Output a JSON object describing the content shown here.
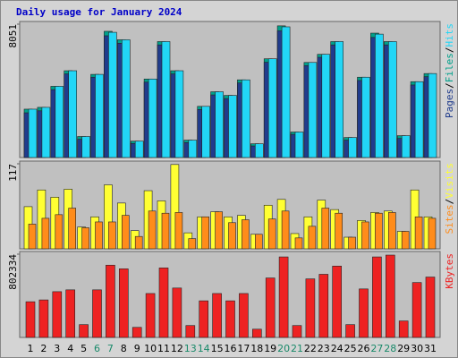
{
  "chart_data": [
    {
      "type": "bar",
      "title": "Daily usage for January 2024",
      "ylim": [
        0,
        8051
      ],
      "yticks": [
        8051
      ],
      "legend_separator": "/",
      "series": [
        {
          "name": "Pages",
          "color": "#203c8c",
          "values": [
            2700,
            2820,
            4100,
            5050,
            1100,
            4850,
            7350,
            6900,
            850,
            4550,
            6800,
            5050,
            900,
            2900,
            3780,
            3560,
            4500,
            700,
            5750,
            7650,
            1400,
            5550,
            6050,
            6800,
            1050,
            4650,
            7250,
            6800,
            1150,
            4380,
            4880
          ]
        },
        {
          "name": "Files",
          "color": "#00a08a",
          "values": [
            2920,
            3030,
            4300,
            5240,
            1270,
            5020,
            7620,
            7110,
            990,
            4740,
            7000,
            5240,
            1050,
            3090,
            3970,
            3750,
            4690,
            830,
            5960,
            7950,
            1540,
            5740,
            6230,
            7000,
            1210,
            4850,
            7510,
            7000,
            1320,
            4580,
            5070
          ]
        },
        {
          "name": "Hits",
          "color": "#22d6f6",
          "values": [
            2920,
            3030,
            4300,
            5240,
            1270,
            5020,
            7560,
            7110,
            990,
            4740,
            7000,
            5240,
            1050,
            3090,
            3970,
            3750,
            4690,
            830,
            5960,
            7890,
            1540,
            5740,
            6230,
            7000,
            1210,
            4850,
            7450,
            7000,
            1320,
            4580,
            5070
          ]
        }
      ]
    },
    {
      "type": "bar",
      "ylim": [
        0,
        117
      ],
      "yticks": [
        117
      ],
      "legend_separator": "/",
      "series": [
        {
          "name": "Sites",
          "color": "#ff8c1a",
          "values": [
            34,
            42,
            47,
            56,
            29,
            37,
            37,
            46,
            17,
            52,
            49,
            50,
            14,
            44,
            51,
            36,
            40,
            20,
            41,
            52,
            15,
            31,
            56,
            49,
            16,
            37,
            49,
            50,
            24,
            44,
            42
          ]
        },
        {
          "name": "Visits",
          "color": "#ffff33",
          "values": [
            58,
            81,
            71,
            82,
            30,
            44,
            88,
            63,
            25,
            80,
            66,
            116,
            22,
            44,
            51,
            44,
            46,
            20,
            60,
            68,
            21,
            44,
            67,
            54,
            16,
            39,
            50,
            52,
            24,
            81,
            44
          ]
        }
      ]
    },
    {
      "type": "bar",
      "ylim": [
        0,
        802334
      ],
      "yticks": [
        802334
      ],
      "series": [
        {
          "name": "KBytes",
          "color": "#ee2222",
          "values": [
            343900,
            361500,
            440900,
            458500,
            123400,
            458500,
            696500,
            661300,
            97000,
            423200,
            670100,
            476100,
            114600,
            352700,
            423200,
            352700,
            423200,
            79400,
            573100,
            775900,
            114600,
            564300,
            608400,
            687700,
            123400,
            467300,
            775900,
            793500,
            158700,
            529000,
            581900
          ]
        }
      ],
      "categories": [
        "1",
        "2",
        "3",
        "4",
        "5",
        "6",
        "7",
        "8",
        "9",
        "10",
        "11",
        "12",
        "13",
        "14",
        "15",
        "16",
        "17",
        "18",
        "19",
        "20",
        "21",
        "22",
        "23",
        "24",
        "25",
        "26",
        "27",
        "28",
        "29",
        "30",
        "31"
      ],
      "category_colors": [
        "#000",
        "#000",
        "#000",
        "#000",
        "#000",
        "#1a8a6a",
        "#1a8a6a",
        "#000",
        "#000",
        "#000",
        "#000",
        "#000",
        "#1a8a6a",
        "#1a8a6a",
        "#000",
        "#000",
        "#000",
        "#000",
        "#000",
        "#1a8a6a",
        "#1a8a6a",
        "#000",
        "#000",
        "#000",
        "#000",
        "#000",
        "#1a8a6a",
        "#1a8a6a",
        "#000",
        "#000",
        "#000"
      ]
    }
  ]
}
